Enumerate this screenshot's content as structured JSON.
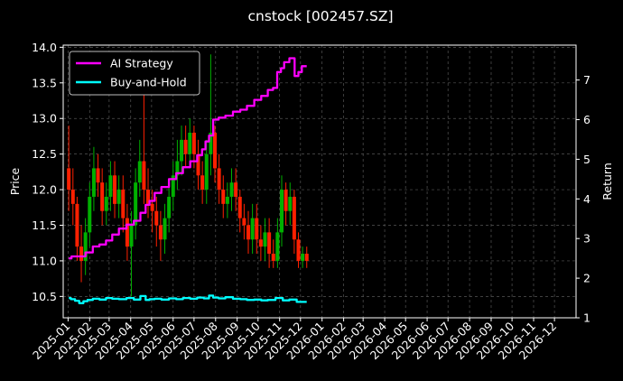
{
  "chart_data": {
    "type": "line",
    "title": "cnstock [002457.SZ]",
    "xlabel": "",
    "ylabel": "Price",
    "y2label": "Return",
    "ylim": [
      10.2,
      14.03
    ],
    "y2lim": [
      1.0,
      7.88
    ],
    "xlim": [
      "2024-12-25",
      "2027-01-01"
    ],
    "grid": true,
    "legend_position": "top-left",
    "x_ticks": [
      "2025-01",
      "2025-02",
      "2025-03",
      "2025-04",
      "2025-05",
      "2025-06",
      "2025-07",
      "2025-08",
      "2025-09",
      "2025-10",
      "2025-11",
      "2025-12",
      "2026-01",
      "2026-02",
      "2026-03",
      "2026-04",
      "2026-05",
      "2026-06",
      "2026-07",
      "2026-08",
      "2026-09",
      "2026-10",
      "2026-11",
      "2026-12"
    ],
    "y_ticks": [
      "10.5",
      "11.0",
      "11.5",
      "12.0",
      "12.5",
      "13.0",
      "13.5",
      "14.0"
    ],
    "y2_ticks": [
      "1",
      "2",
      "3",
      "4",
      "5",
      "6",
      "7"
    ],
    "colors": {
      "background": "#000000",
      "up_candle": "#00b000",
      "down_candle": "#ff2000",
      "ai_strategy": "#ff00ff",
      "buy_and_hold": "#00ffff",
      "grid": "#555555"
    },
    "series": [
      {
        "name": "AI Strategy",
        "axis": "right",
        "x": [
          "2025-01-02",
          "2025-01-10",
          "2025-01-20",
          "2025-02-01",
          "2025-02-10",
          "2025-02-20",
          "2025-03-01",
          "2025-03-10",
          "2025-03-20",
          "2025-04-01",
          "2025-04-10",
          "2025-04-20",
          "2025-04-25",
          "2025-05-01",
          "2025-05-10",
          "2025-05-20",
          "2025-06-01",
          "2025-06-10",
          "2025-06-20",
          "2025-07-01",
          "2025-07-10",
          "2025-07-15",
          "2025-07-20",
          "2025-07-25",
          "2025-08-01",
          "2025-08-10",
          "2025-08-20",
          "2025-09-01",
          "2025-09-10",
          "2025-09-20",
          "2025-10-01",
          "2025-10-10",
          "2025-10-20",
          "2025-10-25",
          "2025-11-01",
          "2025-11-05",
          "2025-11-10",
          "2025-11-20",
          "2025-11-25",
          "2025-12-01",
          "2025-12-05",
          "2025-12-10"
        ],
        "values": [
          2.5,
          2.55,
          2.55,
          2.65,
          2.8,
          2.85,
          2.95,
          3.1,
          3.25,
          3.35,
          3.45,
          3.65,
          3.85,
          3.95,
          4.15,
          4.3,
          4.5,
          4.65,
          4.8,
          4.95,
          5.1,
          5.25,
          5.45,
          5.6,
          6.0,
          6.05,
          6.1,
          6.2,
          6.25,
          6.35,
          6.5,
          6.6,
          6.75,
          6.8,
          7.2,
          7.3,
          7.45,
          7.55,
          7.1,
          7.2,
          7.35,
          7.35
        ]
      },
      {
        "name": "Buy-and-Hold",
        "axis": "right",
        "x": [
          "2025-01-02",
          "2025-01-08",
          "2025-01-14",
          "2025-01-20",
          "2025-01-26",
          "2025-02-01",
          "2025-02-10",
          "2025-02-20",
          "2025-03-01",
          "2025-03-10",
          "2025-03-20",
          "2025-04-01",
          "2025-04-10",
          "2025-04-20",
          "2025-04-25",
          "2025-05-01",
          "2025-05-10",
          "2025-05-20",
          "2025-06-01",
          "2025-06-10",
          "2025-06-20",
          "2025-07-01",
          "2025-07-10",
          "2025-07-20",
          "2025-07-25",
          "2025-08-01",
          "2025-08-10",
          "2025-08-20",
          "2025-09-01",
          "2025-09-10",
          "2025-09-20",
          "2025-10-01",
          "2025-10-10",
          "2025-10-20",
          "2025-11-01",
          "2025-11-10",
          "2025-11-20",
          "2025-12-01",
          "2025-12-10"
        ],
        "values": [
          1.5,
          1.47,
          1.43,
          1.37,
          1.42,
          1.45,
          1.48,
          1.46,
          1.5,
          1.48,
          1.47,
          1.5,
          1.46,
          1.55,
          1.45,
          1.47,
          1.48,
          1.46,
          1.49,
          1.47,
          1.5,
          1.48,
          1.51,
          1.49,
          1.56,
          1.51,
          1.49,
          1.52,
          1.48,
          1.47,
          1.45,
          1.46,
          1.44,
          1.45,
          1.5,
          1.44,
          1.46,
          1.4,
          1.4
        ]
      }
    ],
    "candles": {
      "x": [
        "2025-01-02",
        "2025-01-08",
        "2025-01-14",
        "2025-01-20",
        "2025-01-26",
        "2025-02-01",
        "2025-02-07",
        "2025-02-13",
        "2025-02-19",
        "2025-02-25",
        "2025-03-03",
        "2025-03-09",
        "2025-03-15",
        "2025-03-21",
        "2025-03-27",
        "2025-04-02",
        "2025-04-08",
        "2025-04-14",
        "2025-04-20",
        "2025-04-26",
        "2025-05-02",
        "2025-05-08",
        "2025-05-14",
        "2025-05-20",
        "2025-05-26",
        "2025-06-01",
        "2025-06-07",
        "2025-06-13",
        "2025-06-19",
        "2025-06-25",
        "2025-07-01",
        "2025-07-07",
        "2025-07-13",
        "2025-07-19",
        "2025-07-25",
        "2025-07-31",
        "2025-08-06",
        "2025-08-12",
        "2025-08-18",
        "2025-08-24",
        "2025-08-30",
        "2025-09-05",
        "2025-09-11",
        "2025-09-17",
        "2025-09-23",
        "2025-09-29",
        "2025-10-05",
        "2025-10-11",
        "2025-10-17",
        "2025-10-23",
        "2025-10-29",
        "2025-11-04",
        "2025-11-10",
        "2025-11-16",
        "2025-11-22",
        "2025-11-28",
        "2025-12-04",
        "2025-12-10"
      ],
      "open": [
        12.3,
        12.0,
        11.8,
        11.2,
        11.0,
        11.4,
        11.9,
        12.3,
        12.1,
        11.7,
        11.9,
        12.2,
        11.8,
        12.0,
        11.6,
        11.2,
        11.5,
        12.1,
        12.4,
        12.0,
        11.8,
        11.7,
        11.5,
        11.3,
        11.6,
        11.9,
        12.2,
        12.4,
        12.7,
        12.5,
        12.8,
        12.5,
        12.2,
        12.0,
        12.5,
        12.8,
        12.3,
        12.0,
        11.8,
        11.9,
        12.1,
        11.9,
        11.6,
        11.5,
        11.3,
        11.6,
        11.3,
        11.2,
        11.4,
        11.1,
        11.0,
        11.4,
        12.0,
        11.7,
        11.9,
        11.3,
        11.0,
        11.1
      ],
      "close": [
        12.0,
        11.8,
        11.2,
        11.0,
        11.4,
        11.9,
        12.3,
        12.1,
        11.7,
        11.9,
        12.2,
        11.8,
        12.0,
        11.6,
        11.2,
        11.5,
        12.1,
        12.4,
        12.0,
        11.8,
        11.7,
        11.5,
        11.3,
        11.6,
        11.9,
        12.2,
        12.4,
        12.7,
        12.5,
        12.8,
        12.5,
        12.2,
        12.0,
        12.5,
        12.8,
        12.3,
        12.0,
        11.8,
        11.9,
        12.1,
        11.9,
        11.6,
        11.5,
        11.3,
        11.6,
        11.3,
        11.2,
        11.4,
        11.1,
        11.0,
        11.4,
        12.0,
        11.7,
        11.9,
        11.3,
        11.0,
        11.1,
        11.0
      ],
      "high": [
        12.9,
        12.3,
        11.9,
        11.5,
        11.6,
        12.1,
        12.6,
        12.5,
        12.3,
        12.1,
        12.4,
        12.4,
        12.2,
        12.2,
        11.8,
        11.7,
        12.3,
        12.7,
        13.6,
        12.3,
        12.0,
        11.9,
        11.7,
        11.8,
        12.1,
        12.4,
        12.7,
        12.9,
        12.9,
        13.0,
        12.9,
        12.7,
        12.4,
        12.7,
        13.9,
        12.9,
        12.5,
        12.2,
        12.1,
        12.3,
        12.3,
        12.0,
        11.8,
        11.7,
        11.8,
        11.8,
        11.5,
        11.6,
        11.6,
        11.3,
        11.6,
        12.2,
        12.1,
        12.1,
        12.0,
        11.4,
        11.2,
        11.2
      ],
      "low": [
        11.7,
        11.5,
        11.0,
        10.7,
        10.8,
        11.2,
        11.7,
        11.9,
        11.5,
        11.5,
        11.7,
        11.6,
        11.6,
        11.4,
        11.0,
        10.5,
        11.3,
        11.9,
        11.8,
        11.6,
        11.4,
        11.2,
        11.0,
        11.1,
        11.4,
        11.7,
        12.0,
        12.2,
        12.3,
        12.3,
        12.3,
        12.0,
        11.8,
        11.8,
        12.2,
        12.1,
        11.8,
        11.6,
        11.6,
        11.7,
        11.7,
        11.4,
        11.3,
        11.1,
        11.1,
        11.1,
        11.0,
        11.0,
        10.9,
        10.9,
        10.9,
        11.2,
        11.5,
        11.5,
        11.1,
        10.9,
        10.9,
        10.9
      ]
    }
  }
}
